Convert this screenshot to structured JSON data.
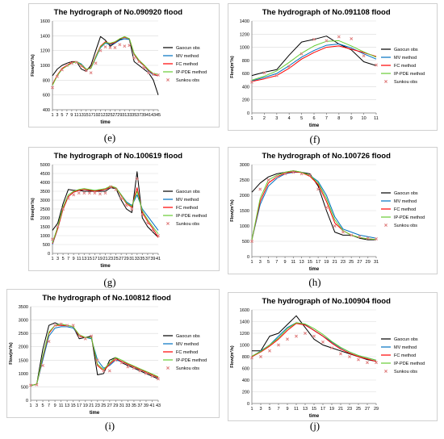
{
  "legend_names": [
    "Gaocun obs",
    "MV method",
    "FC method",
    "IP-PDE method",
    "Sunkou obs"
  ],
  "colors": {
    "gaocun": "#000000",
    "mv": "#0070c0",
    "fc": "#ff0000",
    "ippde": "#66cc33",
    "sunkou": "#e08080"
  },
  "chart_data": [
    {
      "id": "e",
      "panel_label": "(e)",
      "type": "line",
      "title": "The hydrograph of  No.090920 flood",
      "xlabel": "time",
      "ylabel": "Flow(m³/s)",
      "ylim": [
        400,
        1600
      ],
      "yticks": [
        400,
        600,
        800,
        1000,
        1200,
        1400,
        1600
      ],
      "x": [
        1,
        3,
        5,
        7,
        9,
        11,
        13,
        15,
        17,
        19,
        21,
        23,
        25,
        27,
        29,
        31,
        33,
        35,
        37,
        39,
        41,
        43,
        45
      ],
      "xticks": [
        1,
        3,
        5,
        7,
        9,
        11,
        13,
        15,
        17,
        19,
        21,
        23,
        25,
        27,
        29,
        31,
        33,
        35,
        37,
        39,
        41,
        43,
        45
      ],
      "series": [
        {
          "name": "Gaocun obs",
          "values": [
            860,
            950,
            1000,
            1030,
            1050,
            1050,
            950,
            920,
            1000,
            1200,
            1390,
            1340,
            1260,
            1300,
            1350,
            1360,
            1350,
            1050,
            1000,
            950,
            900,
            800,
            600
          ]
        },
        {
          "name": "MV method",
          "values": [
            740,
            860,
            950,
            1000,
            1030,
            1050,
            1020,
            950,
            960,
            1100,
            1240,
            1300,
            1280,
            1300,
            1340,
            1360,
            1350,
            1150,
            1050,
            1000,
            920,
            870,
            860
          ]
        },
        {
          "name": "FC method",
          "values": [
            740,
            870,
            960,
            1000,
            1040,
            1050,
            1000,
            940,
            970,
            1120,
            1260,
            1320,
            1290,
            1310,
            1360,
            1380,
            1360,
            1150,
            1060,
            1000,
            930,
            880,
            860
          ]
        },
        {
          "name": "IP-PDE method",
          "values": [
            730,
            860,
            950,
            990,
            1030,
            1050,
            1010,
            950,
            960,
            1110,
            1250,
            1310,
            1300,
            1320,
            1360,
            1390,
            1360,
            1160,
            1070,
            1010,
            940,
            890,
            880
          ]
        },
        {
          "name": "Sunkou obs",
          "values": [
            700,
            850,
            940,
            1000,
            1030,
            1040,
            990,
            930,
            900,
            1030,
            1200,
            1250,
            1240,
            1240,
            1280,
            1260,
            1270,
            1100,
            1050,
            970,
            900,
            880,
            870
          ]
        }
      ]
    },
    {
      "id": "f",
      "panel_label": "(f)",
      "type": "line",
      "title": "The hydrograph of  No.091108 flood",
      "xlabel": "time",
      "ylabel": "Flow(m³/s)",
      "ylim": [
        0,
        1400
      ],
      "yticks": [
        0,
        200,
        400,
        600,
        800,
        1000,
        1200,
        1400
      ],
      "x": [
        1,
        2,
        3,
        4,
        5,
        6,
        7,
        8,
        9,
        10,
        11
      ],
      "xticks": [
        1,
        2,
        3,
        4,
        5,
        6,
        7,
        8,
        9,
        10,
        11
      ],
      "series": [
        {
          "name": "Gaocun obs",
          "values": [
            570,
            620,
            660,
            880,
            1080,
            1120,
            1170,
            1050,
            960,
            780,
            720
          ]
        },
        {
          "name": "MV method",
          "values": [
            490,
            540,
            600,
            720,
            850,
            950,
            1030,
            1050,
            990,
            900,
            820
          ]
        },
        {
          "name": "FC method",
          "values": [
            480,
            520,
            570,
            680,
            820,
            920,
            1000,
            1020,
            970,
            920,
            860
          ]
        },
        {
          "name": "IP-PDE method",
          "values": [
            500,
            560,
            640,
            770,
            910,
            1020,
            1090,
            1100,
            1020,
            930,
            850
          ]
        },
        {
          "name": "Sunkou obs",
          "values": [
            470,
            610,
            570,
            710,
            900,
            1120,
            1100,
            1160,
            1130,
            870,
            730
          ]
        }
      ]
    },
    {
      "id": "g",
      "panel_label": "(g)",
      "type": "line",
      "title": "The hydrograph of  No.100619 flood",
      "xlabel": "time",
      "ylabel": "Flow(m³/s)",
      "ylim": [
        0,
        5000
      ],
      "yticks": [
        0,
        500,
        1000,
        1500,
        2000,
        2500,
        3000,
        3500,
        4000,
        4500,
        5000
      ],
      "x": [
        1,
        3,
        5,
        7,
        9,
        11,
        13,
        15,
        17,
        19,
        21,
        23,
        25,
        27,
        29,
        31,
        33,
        35,
        37,
        39,
        41
      ],
      "xticks": [
        1,
        3,
        5,
        7,
        9,
        11,
        13,
        15,
        17,
        19,
        21,
        23,
        25,
        27,
        29,
        31,
        33,
        35,
        37,
        39,
        41
      ],
      "series": [
        {
          "name": "Gaocun obs",
          "values": [
            1300,
            1700,
            2800,
            3600,
            3550,
            3550,
            3500,
            3500,
            3500,
            3500,
            3500,
            3700,
            3650,
            3000,
            2500,
            2300,
            4600,
            2000,
            1500,
            1200,
            900
          ]
        },
        {
          "name": "MV method",
          "values": [
            500,
            1400,
            2500,
            3200,
            3450,
            3550,
            3600,
            3550,
            3550,
            3550,
            3600,
            3750,
            3700,
            3300,
            2900,
            2700,
            3300,
            2500,
            2100,
            1700,
            1300
          ]
        },
        {
          "name": "FC method",
          "values": [
            550,
            1400,
            2500,
            3200,
            3450,
            3550,
            3600,
            3550,
            3500,
            3550,
            3600,
            3750,
            3700,
            3250,
            2800,
            2600,
            3700,
            2300,
            1800,
            1400,
            900
          ]
        },
        {
          "name": "IP-PDE method",
          "values": [
            600,
            1500,
            2600,
            3300,
            3500,
            3600,
            3650,
            3600,
            3550,
            3600,
            3650,
            3800,
            3700,
            3300,
            2850,
            2650,
            3500,
            2400,
            1900,
            1500,
            1100
          ]
        },
        {
          "name": "Sunkou obs",
          "values": [
            800,
            1500,
            2500,
            3100,
            3300,
            3400,
            3400,
            3400,
            3400,
            3350,
            3400,
            3750,
            3600,
            3100,
            2700,
            2500,
            4200,
            2200,
            1700,
            1300,
            1000
          ]
        }
      ]
    },
    {
      "id": "h",
      "panel_label": "(h)",
      "type": "line",
      "title": "The hydrograph of  No.100726 flood",
      "xlabel": "time",
      "ylabel": "Flow(m³/s)",
      "ylim": [
        0,
        3000
      ],
      "yticks": [
        0,
        500,
        1000,
        1500,
        2000,
        2500,
        3000
      ],
      "x": [
        1,
        3,
        5,
        7,
        9,
        11,
        13,
        15,
        17,
        19,
        21,
        23,
        25,
        27,
        29,
        31
      ],
      "xticks": [
        1,
        3,
        5,
        7,
        9,
        11,
        13,
        15,
        17,
        19,
        21,
        23,
        25,
        27,
        29,
        31
      ],
      "series": [
        {
          "name": "Gaocun obs",
          "values": [
            2100,
            2400,
            2600,
            2700,
            2750,
            2800,
            2750,
            2700,
            2300,
            1500,
            800,
            700,
            700,
            600,
            550,
            550
          ]
        },
        {
          "name": "MV method",
          "values": [
            550,
            1700,
            2300,
            2550,
            2700,
            2750,
            2750,
            2650,
            2450,
            2000,
            1300,
            900,
            800,
            700,
            650,
            600
          ]
        },
        {
          "name": "FC method",
          "values": [
            550,
            1800,
            2400,
            2600,
            2720,
            2770,
            2740,
            2620,
            2350,
            1800,
            1100,
            850,
            700,
            620,
            580,
            560
          ]
        },
        {
          "name": "IP-PDE method",
          "values": [
            550,
            1900,
            2500,
            2650,
            2750,
            2800,
            2750,
            2650,
            2400,
            1900,
            1200,
            850,
            700,
            620,
            580,
            560
          ]
        },
        {
          "name": "Sunkou obs",
          "values": [
            500,
            2200,
            2500,
            2600,
            2700,
            2750,
            2700,
            2650,
            2200,
            1600,
            1000,
            800,
            700,
            650,
            600,
            580
          ]
        }
      ]
    },
    {
      "id": "i",
      "panel_label": "(i)",
      "type": "line",
      "title": "The hydrograph of  No.100812 flood",
      "xlabel": "time",
      "ylabel": "Flow(m³/s)",
      "ylim": [
        0,
        3500
      ],
      "yticks": [
        0,
        500,
        1000,
        1500,
        2000,
        2500,
        3000,
        3500
      ],
      "x": [
        1,
        3,
        5,
        7,
        9,
        11,
        13,
        15,
        17,
        19,
        21,
        23,
        25,
        27,
        29,
        31,
        33,
        35,
        37,
        39,
        41,
        43
      ],
      "xticks": [
        1,
        3,
        5,
        7,
        9,
        11,
        13,
        15,
        17,
        19,
        21,
        23,
        25,
        27,
        29,
        31,
        33,
        35,
        37,
        39,
        41,
        43
      ],
      "series": [
        {
          "name": "Gaocun obs",
          "values": [
            550,
            600,
            1900,
            2800,
            2900,
            2800,
            2800,
            2750,
            2300,
            2350,
            2400,
            950,
            1000,
            1500,
            1600,
            1400,
            1300,
            1200,
            1100,
            1000,
            900,
            800
          ]
        },
        {
          "name": "MV method",
          "values": [
            550,
            600,
            1500,
            2400,
            2700,
            2750,
            2750,
            2700,
            2400,
            2350,
            2300,
            1500,
            1200,
            1300,
            1500,
            1450,
            1350,
            1250,
            1150,
            1050,
            950,
            850
          ]
        },
        {
          "name": "FC method",
          "values": [
            550,
            600,
            1600,
            2500,
            2800,
            2800,
            2800,
            2750,
            2400,
            2350,
            2350,
            1300,
            1100,
            1350,
            1550,
            1450,
            1350,
            1250,
            1150,
            1050,
            950,
            850
          ]
        },
        {
          "name": "IP-PDE method",
          "values": [
            550,
            600,
            1650,
            2550,
            2800,
            2850,
            2800,
            2750,
            2450,
            2350,
            2350,
            1350,
            1150,
            1400,
            1600,
            1500,
            1380,
            1280,
            1180,
            1080,
            980,
            880
          ]
        },
        {
          "name": "Sunkou obs",
          "values": [
            560,
            580,
            1300,
            2200,
            2800,
            2850,
            2800,
            2800,
            2400,
            2300,
            2400,
            1500,
            1100,
            1100,
            1500,
            1400,
            1250,
            1200,
            1100,
            1000,
            900,
            800
          ]
        }
      ]
    },
    {
      "id": "j",
      "panel_label": "(j)",
      "type": "line",
      "title": "The hydrograph of  No.100904 flood",
      "xlabel": "time",
      "ylabel": "Flow(m³/s)",
      "ylim": [
        0,
        1600
      ],
      "yticks": [
        0,
        200,
        400,
        600,
        800,
        1000,
        1200,
        1400,
        1600
      ],
      "x": [
        1,
        3,
        5,
        7,
        9,
        11,
        13,
        15,
        17,
        19,
        21,
        23,
        25,
        27,
        29
      ],
      "xticks": [
        1,
        3,
        5,
        7,
        9,
        11,
        13,
        15,
        17,
        19,
        21,
        23,
        25,
        27,
        29
      ],
      "series": [
        {
          "name": "Gaocun obs",
          "values": [
            900,
            900,
            1150,
            1200,
            1350,
            1500,
            1300,
            1100,
            1000,
            950,
            900,
            850,
            800,
            750,
            720
          ]
        },
        {
          "name": "MV method",
          "values": [
            800,
            900,
            1000,
            1150,
            1300,
            1380,
            1350,
            1250,
            1150,
            1050,
            950,
            880,
            820,
            780,
            740
          ]
        },
        {
          "name": "FC method",
          "values": [
            800,
            880,
            980,
            1100,
            1250,
            1370,
            1340,
            1250,
            1150,
            1030,
            930,
            860,
            800,
            760,
            720
          ]
        },
        {
          "name": "IP-PDE method",
          "values": [
            810,
            890,
            1000,
            1120,
            1280,
            1380,
            1360,
            1280,
            1180,
            1060,
            960,
            880,
            820,
            780,
            740
          ]
        },
        {
          "name": "Sunkou obs",
          "values": [
            780,
            800,
            900,
            1000,
            1100,
            1150,
            1200,
            1150,
            1050,
            950,
            850,
            800,
            750,
            700,
            700
          ]
        }
      ]
    }
  ]
}
